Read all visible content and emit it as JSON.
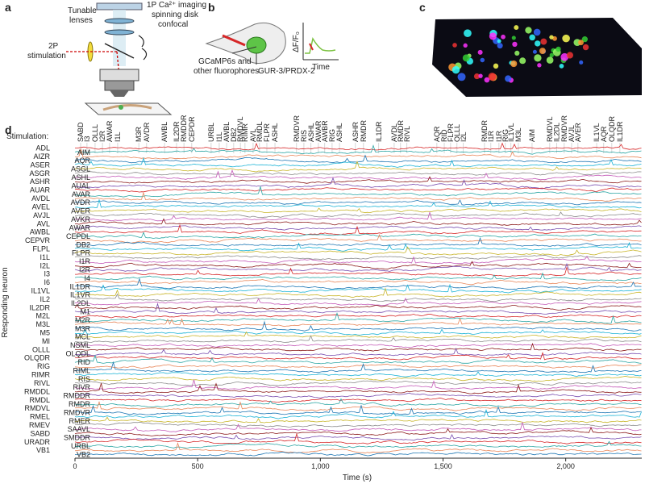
{
  "panel_a": {
    "label": "a",
    "imaging": "1P Ca²⁺ imaging",
    "imaging2": "spinning disk",
    "imaging3": "confocal",
    "lenses": "Tunable",
    "lenses2": "lenses",
    "stim": "2P",
    "stim2": "stimulation"
  },
  "panel_b": {
    "label": "b",
    "fluor": "GCaMP6s and",
    "fluor2": "other fluorophores",
    "gur": "GUR-3/PRDX-2",
    "dff": "ΔF/F₀",
    "time": "Time"
  },
  "panel_c": {
    "label": "c"
  },
  "panel_d": {
    "label": "d",
    "stimulation_label": "Stimulation:",
    "ylabel": "Responding neuron",
    "xlabel": "Time (s)",
    "xlim": [
      0,
      2310
    ],
    "xticks": [
      0,
      500,
      {
        "value": 1000,
        "label": "1,000"
      },
      {
        "value": 1500,
        "label": "1,500"
      },
      {
        "value": 2000,
        "label": "2,000"
      }
    ],
    "palette": [
      "#d62728",
      "#2ca6a4",
      "#e8875a",
      "#1f77b4",
      "#1bb3d6",
      "#c8b52a",
      "#8c8c8c",
      "#c45bb8",
      "#8b1a1a",
      "#7a4fb0"
    ],
    "neurons_left": [
      "ADL",
      "AIZR",
      "ASER",
      "ASGR",
      "ASHR",
      "AUAR",
      "AVDL",
      "AVEL",
      "AVJL",
      "AVL",
      "AWBL",
      "CEPVR",
      "FLPL",
      "I1L",
      "I2L",
      "I3",
      "I6",
      "IL1VL",
      "IL2",
      "IL2DR",
      "M2L",
      "M3L",
      "M5",
      "MI",
      "OLLL",
      "OLQDR",
      "RIG",
      "RIMR",
      "RIVL",
      "RMDDL",
      "RMDL",
      "RMDVL",
      "RMEL",
      "RMEV",
      "SABD",
      "URADR",
      "VB1"
    ],
    "neurons_right": [
      "AIM",
      "AQR",
      "ASGL",
      "ASHL",
      "AUAL",
      "AVAR",
      "AVDR",
      "AVER",
      "AVKR",
      "AWAR",
      "CEPDL",
      "DB2",
      "FLPR",
      "I1R",
      "I2R",
      "I4",
      "IL1DR",
      "IL1VR",
      "IL2DL",
      "M1",
      "M2R",
      "M3R",
      "MCL",
      "NSML",
      "OLQDL",
      "RID",
      "RIML",
      "RIS",
      "RIVR",
      "RMDDR",
      "RMDR",
      "RMDVR",
      "RMER",
      "SAAVL",
      "SMDDR",
      "URBL",
      "VB2"
    ],
    "stimulations": [
      {
        "name": "SABD",
        "time": 23,
        "color": "#8b1a1a"
      },
      {
        "name": "I3",
        "time": 49,
        "color": "#d62728"
      },
      {
        "name": "OLLL",
        "time": 82,
        "color": "#333333"
      },
      {
        "name": "I2R",
        "time": 112,
        "color": "#7a4fb0"
      },
      {
        "name": "AWAR",
        "time": 141,
        "color": "#c45bb8"
      },
      {
        "name": "I1L",
        "time": 174,
        "color": "#8c8c8c"
      },
      {
        "name": "M3R",
        "time": 260,
        "color": "#1f77b4"
      },
      {
        "name": "AVDR",
        "time": 292,
        "color": "#1f77b4"
      },
      {
        "name": "AWBL",
        "time": 365,
        "color": "#d62728"
      },
      {
        "name": "IL2DR",
        "time": 414,
        "color": "#8b1a1a"
      },
      {
        "name": "RMDDR",
        "time": 444,
        "color": "#7a4fb0"
      },
      {
        "name": "CEPDR",
        "time": 476,
        "color": "#d62728"
      },
      {
        "name": "URBL",
        "time": 555,
        "color": "#2ca6a4"
      },
      {
        "name": "I1L",
        "time": 588,
        "color": "#8c8c8c"
      },
      {
        "name": "AWBL",
        "time": 618,
        "color": "#d62728"
      },
      {
        "name": "DB2",
        "time": 647,
        "color": "#1f77b4"
      },
      {
        "name": "RMDVL",
        "time": 674,
        "color": "#e8875a"
      },
      {
        "name": "RIMR",
        "time": 693,
        "color": "#1bb3d6"
      },
      {
        "name": "AVL",
        "time": 726,
        "color": "#8b1a1a"
      },
      {
        "name": "RMDL",
        "time": 752,
        "color": "#d62728"
      },
      {
        "name": "FLPR",
        "time": 782,
        "color": "#c8b52a"
      },
      {
        "name": "ASHL",
        "time": 815,
        "color": "#c45bb8"
      },
      {
        "name": "RMDVR",
        "time": 903,
        "color": "#1f77b4"
      },
      {
        "name": "RIS",
        "time": 933,
        "color": "#c8b52a"
      },
      {
        "name": "ASHL",
        "time": 962,
        "color": "#c45bb8"
      },
      {
        "name": "AWAR",
        "time": 992,
        "color": "#c45bb8"
      },
      {
        "name": "AWBR",
        "time": 1018,
        "color": "#d62728"
      },
      {
        "name": "RIG",
        "time": 1048,
        "color": "#e8875a"
      },
      {
        "name": "ASHL",
        "time": 1078,
        "color": "#c45bb8"
      },
      {
        "name": "ASHR",
        "time": 1143,
        "color": "#8b1a1a"
      },
      {
        "name": "RMDR",
        "time": 1176,
        "color": "#2ca6a4"
      },
      {
        "name": "IL1DR",
        "time": 1238,
        "color": "#1f77b4"
      },
      {
        "name": "AVDL",
        "time": 1301,
        "color": "#e8875a"
      },
      {
        "name": "RMDR",
        "time": 1327,
        "color": "#2ca6a4"
      },
      {
        "name": "RIVL",
        "time": 1353,
        "color": "#333333"
      },
      {
        "name": "AQR",
        "time": 1475,
        "color": "#1f77b4"
      },
      {
        "name": "RID",
        "time": 1505,
        "color": "#1f77b4"
      },
      {
        "name": "FLPR",
        "time": 1531,
        "color": "#c8b52a"
      },
      {
        "name": "OLLL",
        "time": 1557,
        "color": "#333333"
      },
      {
        "name": "I2L",
        "time": 1583,
        "color": "#8b1a1a"
      },
      {
        "name": "RMDR",
        "time": 1669,
        "color": "#2ca6a4"
      },
      {
        "name": "I1R",
        "time": 1695,
        "color": "#c45bb8"
      },
      {
        "name": "I1R",
        "time": 1728,
        "color": "#c45bb8"
      },
      {
        "name": "RIG",
        "time": 1754,
        "color": "#e8875a"
      },
      {
        "name": "IL1VL",
        "time": 1777,
        "color": "#1bb3d6"
      },
      {
        "name": "M3L",
        "time": 1807,
        "color": "#e8875a"
      },
      {
        "name": "AIM",
        "time": 1863,
        "color": "#2ca6a4"
      },
      {
        "name": "RMDVL",
        "time": 1935,
        "color": "#e8875a"
      },
      {
        "name": "IL2DL",
        "time": 1964,
        "color": "#c45bb8"
      },
      {
        "name": "RMDVR",
        "time": 1994,
        "color": "#1f77b4"
      },
      {
        "name": "AVJL",
        "time": 2024,
        "color": "#8c8c8c"
      },
      {
        "name": "AVER",
        "time": 2050,
        "color": "#c8b52a"
      },
      {
        "name": "IL1VL",
        "time": 2126,
        "color": "#1bb3d6"
      },
      {
        "name": "AQR",
        "time": 2155,
        "color": "#1f77b4"
      },
      {
        "name": "OLQDR",
        "time": 2188,
        "color": "#d62728"
      },
      {
        "name": "IL1DR",
        "time": 2221,
        "color": "#1f77b4"
      }
    ]
  }
}
